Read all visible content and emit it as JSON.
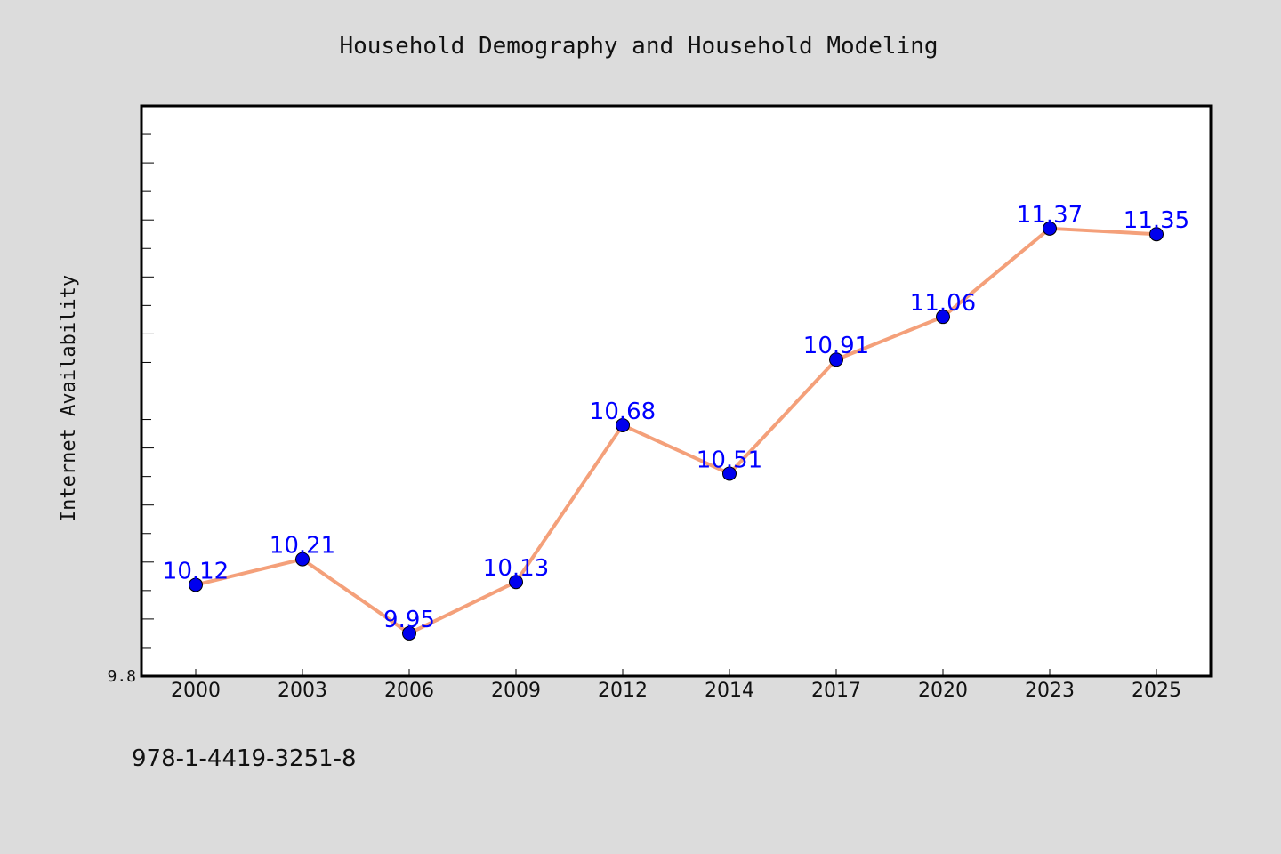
{
  "chart_data": {
    "type": "line",
    "title": "Household Demography and Household Modeling",
    "xlabel": "",
    "ylabel": "Internet Availability",
    "categories": [
      "2000",
      "2003",
      "2006",
      "2009",
      "2012",
      "2014",
      "2017",
      "2020",
      "2023",
      "2025"
    ],
    "series": [
      {
        "values": [
          10.12,
          10.21,
          9.95,
          10.13,
          10.68,
          10.51,
          10.91,
          11.06,
          11.37,
          11.35
        ]
      }
    ],
    "data_labels": [
      "10.12",
      "10.21",
      "9.95",
      "10.13",
      "10.68",
      "10.51",
      "10.91",
      "11.06",
      "11.37",
      "11.35"
    ],
    "ylim": [
      9.8,
      11.8
    ],
    "ytick_labels": [
      "9.8"
    ],
    "grid": false,
    "line_color": "#f4a07a",
    "marker_color": "#0000ee",
    "label_color": "#0000ff"
  },
  "footer": {
    "isbn": "978-1-4419-3251-8"
  }
}
